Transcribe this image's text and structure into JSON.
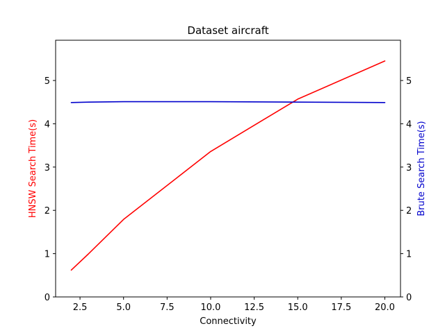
{
  "chart_data": {
    "type": "line",
    "title": "Dataset aircraft",
    "xlabel": "Connectivity",
    "ylabel_left": "HNSW Search Time(s)",
    "ylabel_right": "Brute Search Time(s)",
    "xlim": [
      1.1,
      20.9
    ],
    "ylim_left": [
      0,
      5.93
    ],
    "ylim_right": [
      0,
      5.93
    ],
    "x_ticks": [
      2.5,
      5.0,
      7.5,
      10.0,
      12.5,
      15.0,
      17.5,
      20.0
    ],
    "x_tick_labels": [
      "2.5",
      "5.0",
      "7.5",
      "10.0",
      "12.5",
      "15.0",
      "17.5",
      "20.0"
    ],
    "y_ticks": [
      0,
      1,
      2,
      3,
      4,
      5
    ],
    "y_tick_labels": [
      "0",
      "1",
      "2",
      "3",
      "4",
      "5"
    ],
    "grid": false,
    "series": [
      {
        "axis": "left",
        "color": "#ff0000",
        "x": [
          2,
          3,
          5,
          10,
          15,
          20
        ],
        "values": [
          0.62,
          1.0,
          1.79,
          3.36,
          4.57,
          5.45
        ]
      },
      {
        "axis": "right",
        "color": "#0000cc",
        "x": [
          2,
          3,
          5,
          10,
          15,
          20
        ],
        "values": [
          4.49,
          4.5,
          4.51,
          4.51,
          4.5,
          4.49
        ]
      }
    ],
    "colors": {
      "left_axis_label": "#ff0000",
      "right_axis_label": "#0000cc"
    }
  }
}
